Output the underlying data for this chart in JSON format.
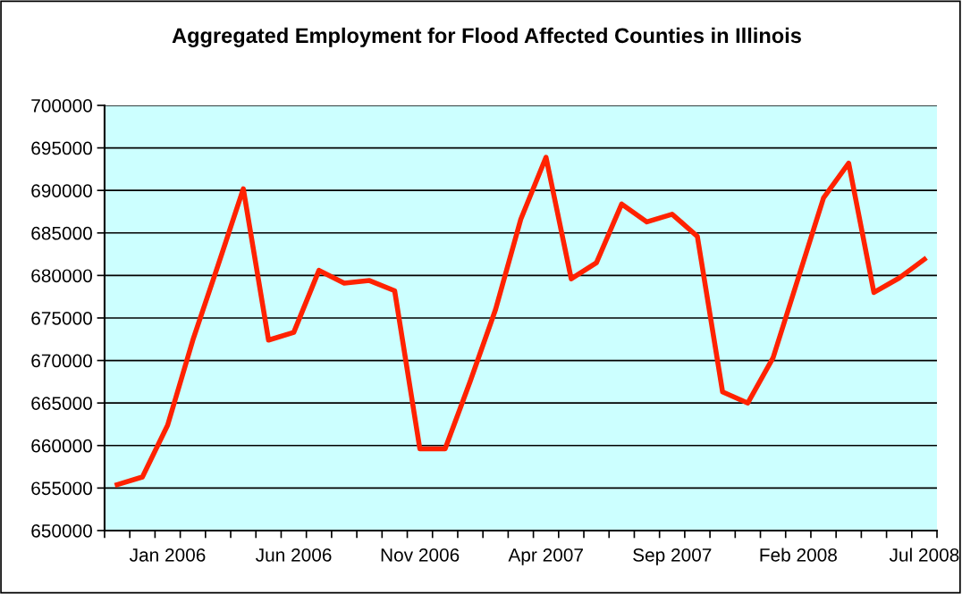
{
  "chart_data": {
    "type": "line",
    "title": "Aggregated Employment for Flood Affected Counties in Illinois",
    "categories": [
      null,
      null,
      "Jan 2006",
      null,
      null,
      null,
      null,
      "Jun 2006",
      null,
      null,
      null,
      null,
      "Nov 2006",
      null,
      null,
      null,
      null,
      "Apr 2007",
      null,
      null,
      null,
      null,
      "Sep 2007",
      null,
      null,
      null,
      null,
      "Feb 2008",
      null,
      null,
      null,
      null,
      "Jul 2008"
    ],
    "series": [
      {
        "color": "#ff2200",
        "values": [
          655400,
          656300,
          662400,
          672400,
          681200,
          690200,
          672400,
          673300,
          680600,
          679100,
          679400,
          678200,
          659600,
          659600,
          667600,
          676000,
          686600,
          693900,
          679600,
          681500,
          688400,
          686300,
          687200,
          684600,
          666300,
          665000,
          670300,
          679700,
          689100,
          693200,
          678000,
          679700,
          681900
        ]
      }
    ],
    "ylim": [
      650000,
      700000
    ],
    "yticks": [
      650000,
      655000,
      660000,
      665000,
      670000,
      675000,
      680000,
      685000,
      690000,
      695000,
      700000
    ],
    "grid": "y",
    "legend": false,
    "marker": "none",
    "line_style": "solid"
  }
}
